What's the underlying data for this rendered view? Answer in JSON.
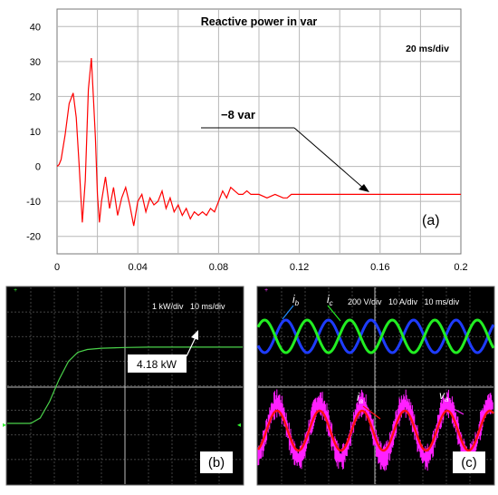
{
  "chart_data": [
    {
      "panel_label": "(a)",
      "type": "line",
      "title": "Reactive power in var",
      "scale_note": "20 ms/div",
      "xlim": [
        0,
        0.2
      ],
      "ylim": [
        -25,
        45
      ],
      "x_ticks": [
        "0",
        "0.04",
        "0.08",
        "0.12",
        "0.16",
        "0.2"
      ],
      "x_tick_values": [
        0,
        0.04,
        0.08,
        0.12,
        0.16,
        0.2
      ],
      "y_ticks": [
        "40",
        "30",
        "20",
        "10",
        "0",
        "-10",
        "-20"
      ],
      "y_tick_values": [
        40,
        30,
        20,
        10,
        0,
        -10,
        -20
      ],
      "grid": true,
      "line_color": "#ff0000",
      "annotation": {
        "text": "−8 var",
        "x": 0.155,
        "y": -8
      },
      "series": [
        {
          "x": [
            0,
            0.001,
            0.002,
            0.004,
            0.006,
            0.008,
            0.0095,
            0.011,
            0.0125,
            0.014,
            0.0155,
            0.017,
            0.018,
            0.019,
            0.02,
            0.021,
            0.022,
            0.024,
            0.026,
            0.028,
            0.03,
            0.032,
            0.034,
            0.036,
            0.038,
            0.04,
            0.042,
            0.044,
            0.046,
            0.048,
            0.05,
            0.052,
            0.054,
            0.056,
            0.058,
            0.06,
            0.062,
            0.064,
            0.066,
            0.068,
            0.07,
            0.072,
            0.074,
            0.076,
            0.078,
            0.08,
            0.082,
            0.084,
            0.086,
            0.088,
            0.09,
            0.092,
            0.094,
            0.096,
            0.098,
            0.1,
            0.104,
            0.108,
            0.112,
            0.114,
            0.116,
            0.12,
            0.13,
            0.14,
            0.16,
            0.18,
            0.2
          ],
          "y": [
            0,
            0.5,
            2,
            9,
            18,
            21,
            14,
            0,
            -16,
            -4,
            22,
            31,
            20,
            8,
            -8,
            -16,
            -10,
            -3,
            -12,
            -6,
            -14,
            -9,
            -6,
            -11,
            -17,
            -10,
            -8,
            -13,
            -9,
            -11,
            -10,
            -7,
            -12,
            -9,
            -13,
            -11,
            -14,
            -12,
            -15,
            -13,
            -14,
            -13,
            -14,
            -12,
            -13,
            -10,
            -7,
            -9,
            -6,
            -7,
            -8,
            -8,
            -7,
            -8,
            -8,
            -8,
            -9,
            -8,
            -9,
            -9,
            -8,
            -8,
            -8,
            -8,
            -8,
            -8,
            -8
          ]
        }
      ]
    },
    {
      "panel_label": "(b)",
      "type": "line",
      "scale_note": "1 kW/div   10 ms/div",
      "annotation": {
        "text": "4.18 kW",
        "y": 4.18
      },
      "line_color": "#4ad24a",
      "series": [
        {
          "x_ms": [
            0,
            10,
            14,
            18,
            22,
            26,
            30,
            34,
            40,
            50,
            60,
            100
          ],
          "y_kw": [
            0,
            0,
            0.3,
            1.2,
            2.4,
            3.4,
            3.9,
            4.05,
            4.12,
            4.16,
            4.18,
            4.18
          ]
        }
      ]
    },
    {
      "panel_label": "(c)",
      "type": "line",
      "scale_note": "200 V/div   10 A/div   10 ms/div",
      "series": [
        {
          "name": "i_b",
          "color": "#1e3cff"
        },
        {
          "name": "i_c",
          "color": "#22ee22"
        },
        {
          "name": "i_a",
          "color": "#ff1010"
        },
        {
          "name": "v_a",
          "color": "#ff20ff"
        }
      ]
    }
  ]
}
